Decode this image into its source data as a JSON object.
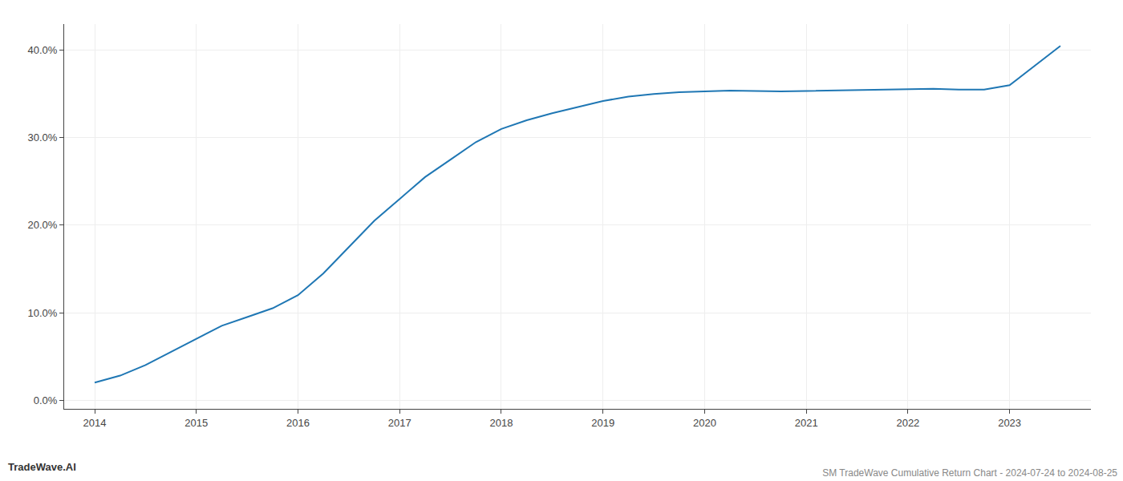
{
  "chart_data": {
    "type": "line",
    "title": "SM TradeWave Cumulative Return Chart - 2024-07-24 to 2024-08-25",
    "annotations": [
      "TradeWave.AI"
    ],
    "color": "#1f77b4",
    "x": [
      2014,
      2014.25,
      2014.5,
      2014.75,
      2015,
      2015.25,
      2015.5,
      2015.75,
      2016,
      2016.25,
      2016.5,
      2016.75,
      2017,
      2017.25,
      2017.5,
      2017.75,
      2018,
      2018.25,
      2018.5,
      2018.75,
      2019,
      2019.25,
      2019.5,
      2019.75,
      2020,
      2020.25,
      2020.5,
      2020.75,
      2021,
      2021.25,
      2021.5,
      2021.75,
      2022,
      2022.25,
      2022.5,
      2022.75,
      2023,
      2023.5
    ],
    "values": [
      2.0,
      2.8,
      4.0,
      5.5,
      7.0,
      8.5,
      9.5,
      10.5,
      12.0,
      14.5,
      17.5,
      20.5,
      23.0,
      25.5,
      27.5,
      29.5,
      31.0,
      32.0,
      32.8,
      33.5,
      34.2,
      34.7,
      35.0,
      35.2,
      35.3,
      35.4,
      35.35,
      35.3,
      35.35,
      35.4,
      35.45,
      35.5,
      35.55,
      35.6,
      35.5,
      35.5,
      36.0,
      40.5
    ],
    "xlim": [
      2013.7,
      2023.8
    ],
    "ylim": [
      -1,
      43
    ],
    "xticks": [
      2014,
      2015,
      2016,
      2017,
      2018,
      2019,
      2020,
      2021,
      2022,
      2023
    ],
    "yticks": [
      {
        "value": 0,
        "label": "0.0%"
      },
      {
        "value": 10,
        "label": "10.0%"
      },
      {
        "value": 20,
        "label": "20.0%"
      },
      {
        "value": 30,
        "label": "30.0%"
      },
      {
        "value": 40,
        "label": "40.0%"
      }
    ],
    "grid": true
  }
}
